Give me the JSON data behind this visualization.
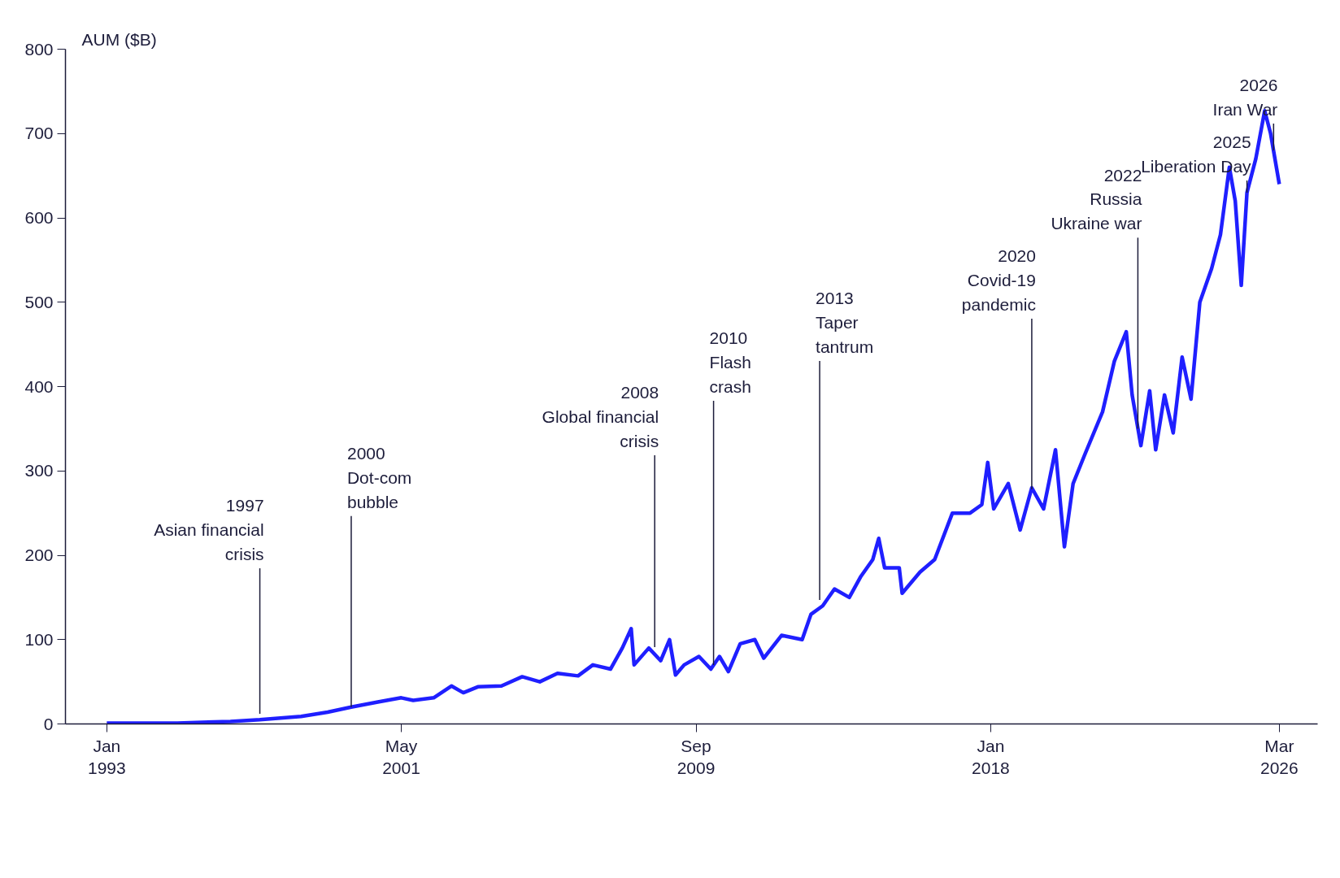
{
  "chart_data": {
    "type": "line",
    "ylabel": "AUM ($B)",
    "color": "#1f1fff",
    "x": [
      "1993-01",
      "1995-01",
      "1996-07",
      "1997-05",
      "1998-07",
      "1999-04",
      "1999-12",
      "2000-09",
      "2001-05",
      "2001-09",
      "2002-04",
      "2002-10",
      "2003-02",
      "2003-07",
      "2004-03",
      "2004-10",
      "2005-04",
      "2005-10",
      "2006-05",
      "2006-10",
      "2007-04",
      "2007-08",
      "2007-11",
      "2007-12",
      "2008-05",
      "2008-09",
      "2008-12",
      "2009-02",
      "2009-05",
      "2009-10",
      "2010-02",
      "2010-05",
      "2010-08",
      "2010-12",
      "2011-05",
      "2011-08",
      "2012-02",
      "2012-09",
      "2012-12",
      "2013-04",
      "2013-08",
      "2014-01",
      "2014-05",
      "2014-09",
      "2014-11",
      "2015-01",
      "2015-06",
      "2015-07",
      "2016-01",
      "2016-06",
      "2016-12",
      "2017-06",
      "2017-10",
      "2017-12",
      "2018-02",
      "2018-07",
      "2018-11",
      "2019-03",
      "2019-07",
      "2019-11",
      "2020-02",
      "2020-05",
      "2020-09",
      "2021-03",
      "2021-07",
      "2021-11",
      "2022-01",
      "2022-04",
      "2022-07",
      "2022-09",
      "2022-12",
      "2023-03",
      "2023-06",
      "2023-09",
      "2023-12",
      "2024-04",
      "2024-07",
      "2024-10",
      "2024-12",
      "2025-02",
      "2025-04",
      "2025-07",
      "2025-10",
      "2025-12",
      "2026-03"
    ],
    "values": [
      1,
      1,
      3,
      5,
      9,
      14,
      20,
      26,
      31,
      28,
      31,
      45,
      37,
      44,
      45,
      56,
      50,
      60,
      57,
      70,
      65,
      90,
      113,
      70,
      90,
      75,
      100,
      58,
      70,
      80,
      65,
      80,
      62,
      95,
      100,
      78,
      105,
      100,
      130,
      140,
      160,
      150,
      175,
      195,
      220,
      185,
      185,
      155,
      180,
      195,
      250,
      250,
      260,
      310,
      255,
      285,
      230,
      280,
      255,
      325,
      210,
      285,
      320,
      370,
      430,
      465,
      390,
      330,
      395,
      325,
      390,
      345,
      435,
      385,
      500,
      540,
      580,
      660,
      620,
      520,
      630,
      670,
      727,
      700,
      640
    ],
    "xlim": [
      "1991-11",
      "2027-04"
    ],
    "xticks": [
      {
        "value": "1993-01",
        "label": "Jan\n1993"
      },
      {
        "value": "2001-05",
        "label": "May\n2001"
      },
      {
        "value": "2009-09",
        "label": "Sep\n2009"
      },
      {
        "value": "2018-01",
        "label": "Jan\n2018"
      },
      {
        "value": "2026-03",
        "label": "Mar\n2026"
      }
    ],
    "ylim": [
      0,
      800
    ],
    "yticks": [
      0,
      100,
      200,
      300,
      400,
      500,
      600,
      700,
      800
    ],
    "grid": false,
    "marker": "none",
    "line_style": "solid",
    "annotations": [
      {
        "text": "1997\nAsian financial\ncrisis",
        "x": "1997-05",
        "y": 12
      },
      {
        "text": "2000\nDot-com\nbubble",
        "x": "1999-12",
        "y": 20
      },
      {
        "text": "2008\nGlobal financial\ncrisis",
        "x": "2008-07",
        "y": 91
      },
      {
        "text": "2010\nFlash\ncrash",
        "x": "2010-03",
        "y": 70
      },
      {
        "text": "2013\nTaper\ntantrum",
        "x": "2013-03",
        "y": 147
      },
      {
        "text": "2020\nCovid-19\npandemic",
        "x": "2019-03",
        "y": 278
      },
      {
        "text": "2022\nRussia\nUkraine war",
        "x": "2022-03",
        "y": 350
      },
      {
        "text": "2025\nLiberation Day",
        "x": "2025-04",
        "y": 630
      },
      {
        "text": "2026\nIran War",
        "x": "2026-01",
        "y": 680
      }
    ]
  }
}
